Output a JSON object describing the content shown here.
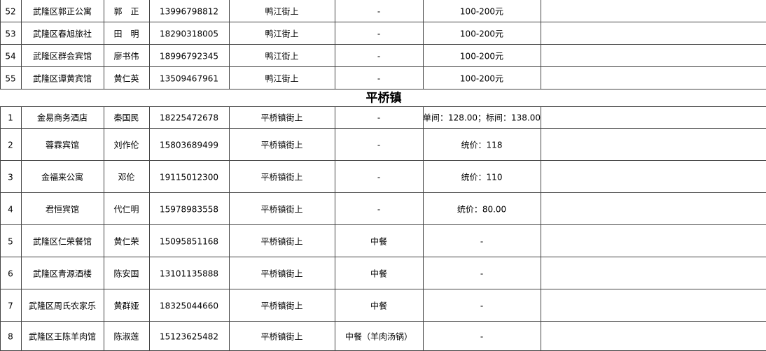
{
  "table": {
    "sections": [
      {
        "rows": [
          [
            "52",
            "武隆区郭正公寓",
            "郭　正",
            "13996798812",
            "鸭江街上",
            "-",
            "100-200元"
          ],
          [
            "53",
            "武隆区春旭旅社",
            "田　明",
            "18290318005",
            "鸭江街上",
            "-",
            "100-200元"
          ],
          [
            "54",
            "武隆区群会宾馆",
            "廖书伟",
            "18996792345",
            "鸭江街上",
            "-",
            "100-200元"
          ],
          [
            "55",
            "武隆区谭黄宾馆",
            "黄仁英",
            "13509467961",
            "鸭江街上",
            "-",
            "100-200元"
          ]
        ]
      },
      {
        "title": "平桥镇",
        "rows": [
          [
            "1",
            "金易商务酒店",
            "秦国民",
            "18225472678",
            "平桥镇街上",
            "-",
            "单间：128.00；标间：138.00"
          ],
          [
            "2",
            "蓉霖宾馆",
            "刘作伦",
            "15803689499",
            "平桥镇街上",
            "-",
            "统价：118"
          ],
          [
            "3",
            "金福来公寓",
            "邓伦",
            "19115012300",
            "平桥镇街上",
            "-",
            "统价：110"
          ],
          [
            "4",
            "君恒宾馆",
            "代仁明",
            "15978983558",
            "平桥镇街上",
            "-",
            "统价：80.00"
          ],
          [
            "5",
            "武隆区仁荣餐馆",
            "黄仁荣",
            "15095851168",
            "平桥镇街上",
            "中餐",
            "-"
          ],
          [
            "6",
            "武隆区青源酒楼",
            "陈安国",
            "13101135888",
            "平桥镇街上",
            "中餐",
            "-"
          ],
          [
            "7",
            "武隆区周氏农家乐",
            "黄群娅",
            "18325044660",
            "平桥镇街上",
            "中餐",
            "-"
          ],
          [
            "8",
            "武隆区王陈羊肉馆",
            "陈淑莲",
            "15123625482",
            "平桥镇街上",
            "中餐（羊肉汤锅）",
            "-"
          ]
        ]
      }
    ]
  }
}
